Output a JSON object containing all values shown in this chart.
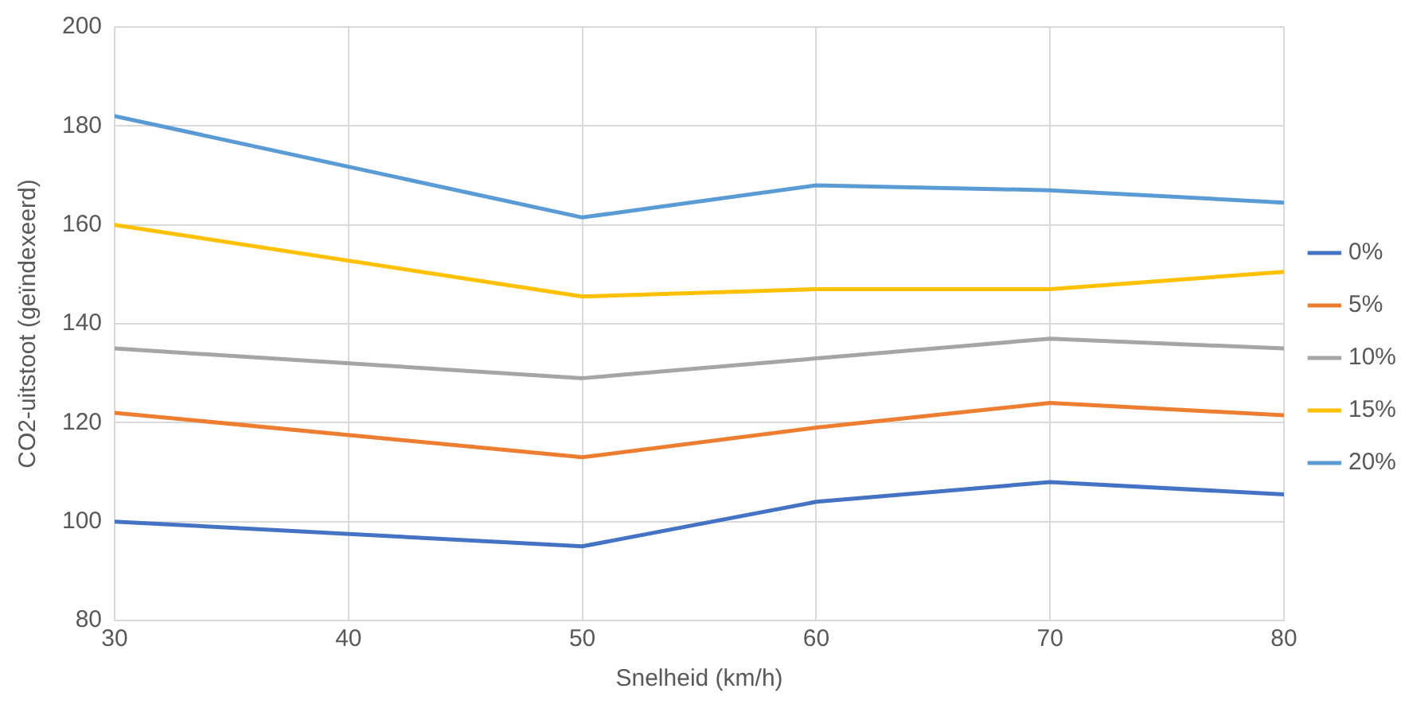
{
  "chart_data": {
    "type": "line",
    "xlabel": "Snelheid (km/h)",
    "ylabel": "CO2-uitstoot (geïndexeerd)",
    "x": [
      30,
      50,
      60,
      70,
      80
    ],
    "xlim": [
      30,
      80
    ],
    "xticks": [
      30,
      40,
      50,
      60,
      70,
      80
    ],
    "ylim": [
      80,
      200
    ],
    "yticks": [
      80,
      100,
      120,
      140,
      160,
      180,
      200
    ],
    "grid": true,
    "legend": "right",
    "marker": "none",
    "line_style": "solid",
    "series": [
      {
        "name": "0%",
        "color": "#4472c4",
        "values": [
          100,
          95,
          104,
          108,
          105.5
        ]
      },
      {
        "name": "5%",
        "color": "#ed7d31",
        "values": [
          122,
          113,
          119,
          124,
          121.5
        ]
      },
      {
        "name": "10%",
        "color": "#a5a5a5",
        "values": [
          135,
          129,
          133,
          137,
          135
        ]
      },
      {
        "name": "15%",
        "color": "#ffc000",
        "values": [
          160,
          145.5,
          147,
          147,
          150.5
        ]
      },
      {
        "name": "20%",
        "color": "#5b9bd5",
        "values": [
          182,
          161.5,
          168,
          167,
          164.5
        ]
      }
    ]
  }
}
